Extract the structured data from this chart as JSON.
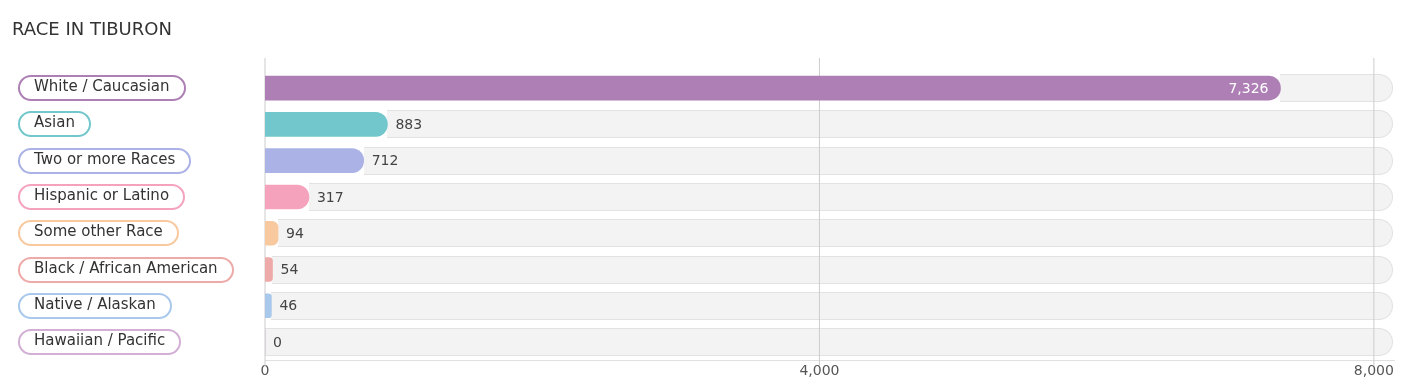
{
  "chart_data": {
    "type": "bar",
    "orientation": "horizontal",
    "title": "RACE IN TIBURON",
    "categories": [
      "White / Caucasian",
      "Asian",
      "Two or more Races",
      "Hispanic or Latino",
      "Some other Race",
      "Black / African American",
      "Native / Alaskan",
      "Hawaiian / Pacific"
    ],
    "values": [
      7326,
      883,
      712,
      317,
      94,
      54,
      46,
      0
    ],
    "value_labels": [
      "7,326",
      "883",
      "712",
      "317",
      "94",
      "54",
      "46",
      "0"
    ],
    "colors": [
      "#ad7fb5",
      "#72c7cc",
      "#aab2e6",
      "#f5a3bd",
      "#f8c89e",
      "#eeaaa8",
      "#a8c8ec",
      "#d2afd4"
    ],
    "xlim": [
      0,
      8145
    ],
    "xticks": [
      0,
      {
        "value": 4000,
        "label": "4,000"
      },
      {
        "value": 8000,
        "label": "8,000"
      }
    ],
    "grid": "x",
    "legend": false
  }
}
